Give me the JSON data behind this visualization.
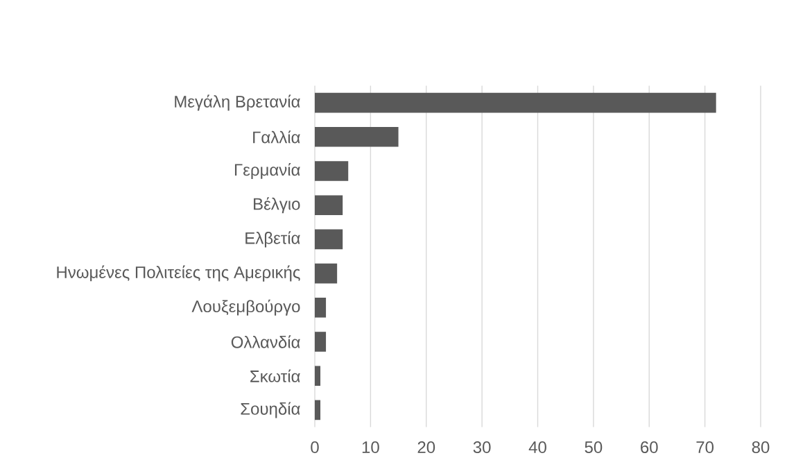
{
  "chart_data": {
    "type": "bar",
    "orientation": "horizontal",
    "categories": [
      "Μεγάλη Βρετανία",
      "Γαλλία",
      "Γερμανία",
      "Βέλγιο",
      "Ελβετία",
      "Ηνωμένες Πολιτείες της Αμερικής",
      "Λουξεμβούργο",
      "Ολλανδία",
      "Σκωτία",
      "Σουηδία"
    ],
    "values": [
      72,
      15,
      6,
      5,
      5,
      4,
      2,
      2,
      1,
      1
    ],
    "color": "#595959",
    "xlim": [
      0,
      80
    ],
    "xticks": [
      0,
      10,
      20,
      30,
      40,
      50,
      60,
      70,
      80
    ],
    "grid": "x"
  }
}
